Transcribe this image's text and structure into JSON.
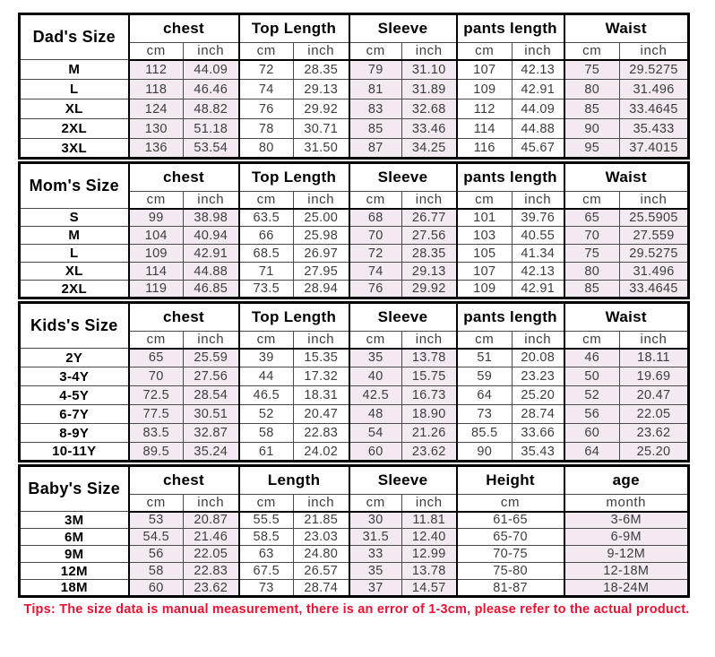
{
  "colors": {
    "shaded_cell": "#f3e9f2",
    "border": "#000000",
    "tips_text": "#ee1133",
    "data_text": "#3d3d3d"
  },
  "tips": "Tips: The size data is manual measurement, there is an error of 1-3cm, please refer to the actual product.",
  "chart_data": [
    {
      "type": "table",
      "title": "Dad's Size",
      "column_groups": [
        {
          "label": "chest",
          "sub": [
            "cm",
            "inch"
          ]
        },
        {
          "label": "Top Length",
          "sub": [
            "cm",
            "inch"
          ]
        },
        {
          "label": "Sleeve",
          "sub": [
            "cm",
            "inch"
          ]
        },
        {
          "label": "pants length",
          "sub": [
            "cm",
            "inch"
          ]
        },
        {
          "label": "Waist",
          "sub": [
            "cm",
            "inch"
          ]
        }
      ],
      "rows": [
        {
          "size": "M",
          "values": [
            "112",
            "44.09",
            "72",
            "28.35",
            "79",
            "31.10",
            "107",
            "42.13",
            "75",
            "29.5275"
          ]
        },
        {
          "size": "L",
          "values": [
            "118",
            "46.46",
            "74",
            "29.13",
            "81",
            "31.89",
            "109",
            "42.91",
            "80",
            "31.496"
          ]
        },
        {
          "size": "XL",
          "values": [
            "124",
            "48.82",
            "76",
            "29.92",
            "83",
            "32.68",
            "112",
            "44.09",
            "85",
            "33.4645"
          ]
        },
        {
          "size": "2XL",
          "values": [
            "130",
            "51.18",
            "78",
            "30.71",
            "85",
            "33.46",
            "114",
            "44.88",
            "90",
            "35.433"
          ]
        },
        {
          "size": "3XL",
          "values": [
            "136",
            "53.54",
            "80",
            "31.50",
            "87",
            "34.25",
            "116",
            "45.67",
            "95",
            "37.4015"
          ]
        }
      ]
    },
    {
      "type": "table",
      "title": "Mom's Size",
      "column_groups": [
        {
          "label": "chest",
          "sub": [
            "cm",
            "inch"
          ]
        },
        {
          "label": "Top Length",
          "sub": [
            "cm",
            "inch"
          ]
        },
        {
          "label": "Sleeve",
          "sub": [
            "cm",
            "inch"
          ]
        },
        {
          "label": "pants length",
          "sub": [
            "cm",
            "inch"
          ]
        },
        {
          "label": "Waist",
          "sub": [
            "cm",
            "inch"
          ]
        }
      ],
      "rows": [
        {
          "size": "S",
          "values": [
            "99",
            "38.98",
            "63.5",
            "25.00",
            "68",
            "26.77",
            "101",
            "39.76",
            "65",
            "25.5905"
          ]
        },
        {
          "size": "M",
          "values": [
            "104",
            "40.94",
            "66",
            "25.98",
            "70",
            "27.56",
            "103",
            "40.55",
            "70",
            "27.559"
          ]
        },
        {
          "size": "L",
          "values": [
            "109",
            "42.91",
            "68.5",
            "26.97",
            "72",
            "28.35",
            "105",
            "41.34",
            "75",
            "29.5275"
          ]
        },
        {
          "size": "XL",
          "values": [
            "114",
            "44.88",
            "71",
            "27.95",
            "74",
            "29.13",
            "107",
            "42.13",
            "80",
            "31.496"
          ]
        },
        {
          "size": "2XL",
          "values": [
            "119",
            "46.85",
            "73.5",
            "28.94",
            "76",
            "29.92",
            "109",
            "42.91",
            "85",
            "33.4645"
          ]
        }
      ]
    },
    {
      "type": "table",
      "title": "Kids's Size",
      "column_groups": [
        {
          "label": "chest",
          "sub": [
            "cm",
            "inch"
          ]
        },
        {
          "label": "Top Length",
          "sub": [
            "cm",
            "inch"
          ]
        },
        {
          "label": "Sleeve",
          "sub": [
            "cm",
            "inch"
          ]
        },
        {
          "label": "pants length",
          "sub": [
            "cm",
            "inch"
          ]
        },
        {
          "label": "Waist",
          "sub": [
            "cm",
            "inch"
          ]
        }
      ],
      "rows": [
        {
          "size": "2Y",
          "values": [
            "65",
            "25.59",
            "39",
            "15.35",
            "35",
            "13.78",
            "51",
            "20.08",
            "46",
            "18.11"
          ]
        },
        {
          "size": "3-4Y",
          "values": [
            "70",
            "27.56",
            "44",
            "17.32",
            "40",
            "15.75",
            "59",
            "23.23",
            "50",
            "19.69"
          ]
        },
        {
          "size": "4-5Y",
          "values": [
            "72.5",
            "28.54",
            "46.5",
            "18.31",
            "42.5",
            "16.73",
            "64",
            "25.20",
            "52",
            "20.47"
          ]
        },
        {
          "size": "6-7Y",
          "values": [
            "77.5",
            "30.51",
            "52",
            "20.47",
            "48",
            "18.90",
            "73",
            "28.74",
            "56",
            "22.05"
          ]
        },
        {
          "size": "8-9Y",
          "values": [
            "83.5",
            "32.87",
            "58",
            "22.83",
            "54",
            "21.26",
            "85.5",
            "33.66",
            "60",
            "23.62"
          ]
        },
        {
          "size": "10-11Y",
          "values": [
            "89.5",
            "35.24",
            "61",
            "24.02",
            "60",
            "23.62",
            "90",
            "35.43",
            "64",
            "25.20"
          ]
        }
      ]
    },
    {
      "type": "table",
      "title": "Baby's Size",
      "column_groups": [
        {
          "label": "chest",
          "sub": [
            "cm",
            "inch"
          ]
        },
        {
          "label": "Length",
          "sub": [
            "cm",
            "inch"
          ]
        },
        {
          "label": "Sleeve",
          "sub": [
            "cm",
            "inch"
          ]
        },
        {
          "label": "Height",
          "sub": [
            "cm"
          ]
        },
        {
          "label": "age",
          "sub": [
            "month"
          ]
        }
      ],
      "rows": [
        {
          "size": "3M",
          "values": [
            "53",
            "20.87",
            "55.5",
            "21.85",
            "30",
            "11.81",
            "61-65",
            "3-6M"
          ]
        },
        {
          "size": "6M",
          "values": [
            "54.5",
            "21.46",
            "58.5",
            "23.03",
            "31.5",
            "12.40",
            "65-70",
            "6-9M"
          ]
        },
        {
          "size": "9M",
          "values": [
            "56",
            "22.05",
            "63",
            "24.80",
            "33",
            "12.99",
            "70-75",
            "9-12M"
          ]
        },
        {
          "size": "12M",
          "values": [
            "58",
            "22.83",
            "67.5",
            "26.57",
            "35",
            "13.78",
            "75-80",
            "12-18M"
          ]
        },
        {
          "size": "18M",
          "values": [
            "60",
            "23.62",
            "73",
            "28.74",
            "37",
            "14.57",
            "81-87",
            "18-24M"
          ]
        }
      ]
    }
  ]
}
